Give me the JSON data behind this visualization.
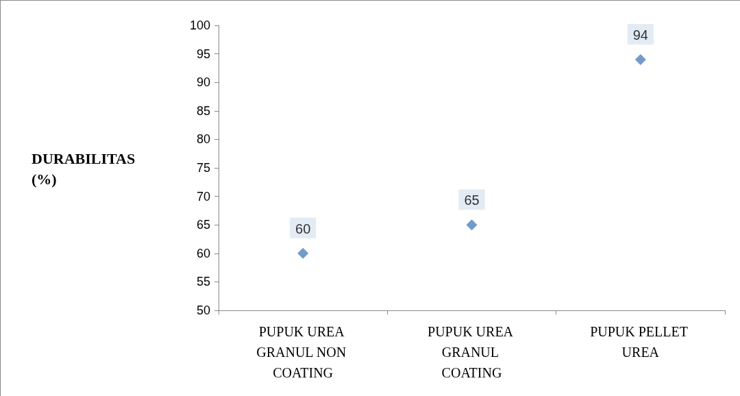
{
  "chart_data": {
    "type": "scatter",
    "ylabel": "DURABILITAS (%)",
    "categories": [
      "PUPUK UREA GRANUL NON COATING",
      "PUPUK UREA GRANUL COATING",
      "PUPUK PELLET UREA"
    ],
    "values": [
      60,
      65,
      94
    ],
    "color": "#4f81bd",
    "marker": "diamond",
    "data_labels": true,
    "ylim": [
      50,
      100
    ],
    "yticks": [
      50,
      55,
      60,
      65,
      70,
      75,
      80,
      85,
      90,
      95,
      100
    ],
    "grid": false
  }
}
